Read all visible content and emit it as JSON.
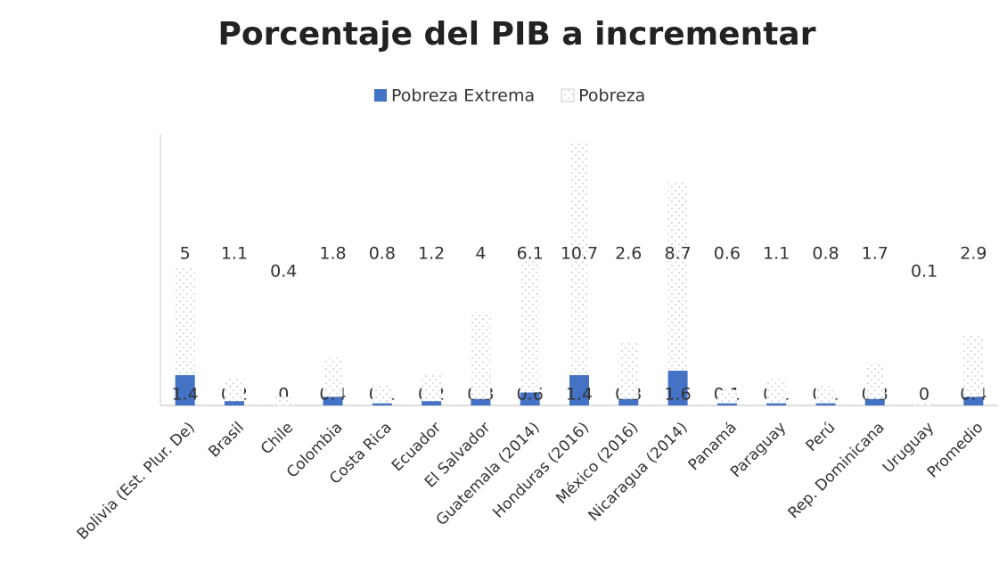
{
  "chart_data": {
    "type": "bar",
    "stacked": true,
    "title": "Porcentaje del PIB a incrementar",
    "categories": [
      "Bolivia (Est. Plur. De)",
      "Brasil",
      "Chile",
      "Colombia",
      "Costa Rica",
      "Ecuador",
      "El Salvador",
      "Guatemala (2014)",
      "Honduras (2016)",
      "México (2016)",
      "Nicaragua (2014)",
      "Panamá",
      "Paraguay",
      "Perú",
      "Rep. Dominicana",
      "Uruguay",
      "Promedio"
    ],
    "series": [
      {
        "name": "Pobreza Extrema",
        "color": "#4472c4",
        "values": [
          1.4,
          0.2,
          0,
          0.4,
          0.1,
          0.2,
          0.3,
          0.6,
          1.4,
          0.3,
          1.6,
          0.1,
          0.1,
          0.1,
          0.3,
          0,
          0.4
        ]
      },
      {
        "name": "Pobreza",
        "color": "#dfe6f2",
        "values": [
          5,
          1.1,
          0.4,
          1.8,
          0.8,
          1.2,
          4,
          6.1,
          10.7,
          2.6,
          8.7,
          0.6,
          1.1,
          0.8,
          1.7,
          0.1,
          2.9
        ]
      }
    ],
    "ylim": [
      0,
      12.5
    ],
    "legend": "top"
  }
}
